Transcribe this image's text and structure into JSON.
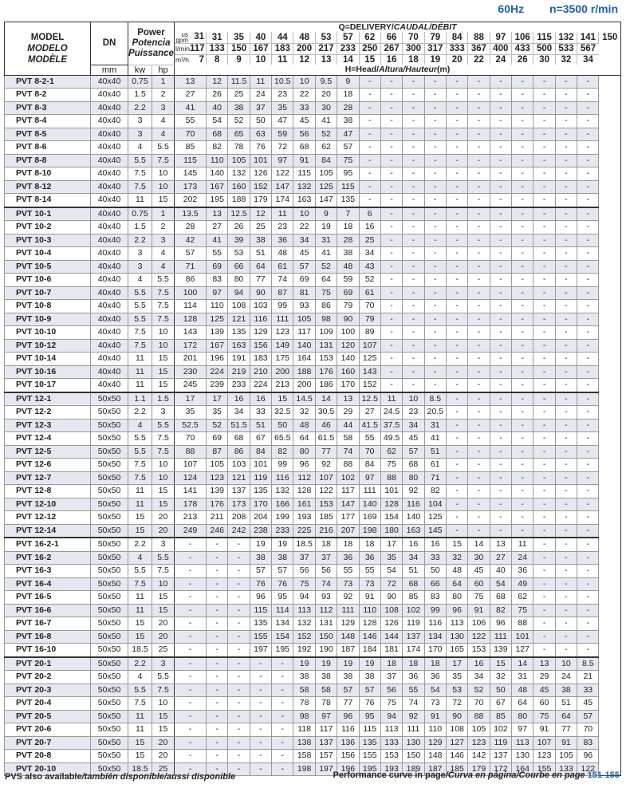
{
  "header": {
    "freq": "60Hz",
    "speed": "n=3500 r/min"
  },
  "columns": {
    "model": [
      "MODEL",
      "MODELO",
      "MODÈLE"
    ],
    "dn": "DN",
    "dn_unit": "mm",
    "power": [
      "Power",
      "Potencia",
      "Puissance"
    ],
    "kw": "kw",
    "hp": "hp",
    "delivery_label": "Q=DELIVERY/",
    "delivery_italic": "CAUDAL/DÉBIT",
    "gpm_unit": "us gpm",
    "lmin_unit": "l/min",
    "m3h_unit": "m³/h",
    "gpm": [
      "31",
      "35",
      "40",
      "44",
      "48",
      "53",
      "57",
      "62",
      "66",
      "70",
      "79",
      "84",
      "88",
      "97",
      "106",
      "115",
      "132",
      "141",
      "150"
    ],
    "gpm_first": "31",
    "lmin": [
      "117",
      "133",
      "150",
      "167",
      "183",
      "200",
      "217",
      "233",
      "250",
      "267",
      "300",
      "317",
      "333",
      "367",
      "400",
      "433",
      "500",
      "533",
      "567"
    ],
    "m3h": [
      "7",
      "8",
      "9",
      "10",
      "11",
      "12",
      "13",
      "14",
      "15",
      "16",
      "18",
      "19",
      "20",
      "22",
      "24",
      "26",
      "30",
      "32",
      "34"
    ],
    "head_label": "H=Head/",
    "head_italic": "Altura/Hauteur",
    "head_unit": "(m)"
  },
  "rows": [
    [
      "PVT 8-2-1",
      "40x40",
      "0.75",
      "1",
      "13",
      "12",
      "11.5",
      "11",
      "10.5",
      "10",
      "9.5",
      "9",
      "-",
      "-",
      "-",
      "-",
      "-",
      "-",
      "-",
      "-",
      "-",
      "-",
      "-"
    ],
    [
      "PVT 8-2",
      "40x40",
      "1.5",
      "2",
      "27",
      "26",
      "25",
      "24",
      "23",
      "22",
      "20",
      "18",
      "-",
      "-",
      "-",
      "-",
      "-",
      "-",
      "-",
      "-",
      "-",
      "-",
      "-"
    ],
    [
      "PVT 8-3",
      "40x40",
      "2.2",
      "3",
      "41",
      "40",
      "38",
      "37",
      "35",
      "33",
      "30",
      "28",
      "-",
      "-",
      "-",
      "-",
      "-",
      "-",
      "-",
      "-",
      "-",
      "-",
      "-"
    ],
    [
      "PVT 8-4",
      "40x40",
      "3",
      "4",
      "55",
      "54",
      "52",
      "50",
      "47",
      "45",
      "41",
      "38",
      "-",
      "-",
      "-",
      "-",
      "-",
      "-",
      "-",
      "-",
      "-",
      "-",
      "-"
    ],
    [
      "PVT 8-5",
      "40x40",
      "3",
      "4",
      "70",
      "68",
      "65",
      "63",
      "59",
      "56",
      "52",
      "47",
      "-",
      "-",
      "-",
      "-",
      "-",
      "-",
      "-",
      "-",
      "-",
      "-",
      "-"
    ],
    [
      "PVT 8-6",
      "40x40",
      "4",
      "5.5",
      "85",
      "82",
      "78",
      "76",
      "72",
      "68",
      "62",
      "57",
      "-",
      "-",
      "-",
      "-",
      "-",
      "-",
      "-",
      "-",
      "-",
      "-",
      "-"
    ],
    [
      "PVT 8-8",
      "40x40",
      "5.5",
      "7.5",
      "115",
      "110",
      "105",
      "101",
      "97",
      "91",
      "84",
      "75",
      "-",
      "-",
      "-",
      "-",
      "-",
      "-",
      "-",
      "-",
      "-",
      "-",
      "-"
    ],
    [
      "PVT 8-10",
      "40x40",
      "7.5",
      "10",
      "145",
      "140",
      "132",
      "126",
      "122",
      "115",
      "105",
      "95",
      "-",
      "-",
      "-",
      "-",
      "-",
      "-",
      "-",
      "-",
      "-",
      "-",
      "-"
    ],
    [
      "PVT 8-12",
      "40x40",
      "7.5",
      "10",
      "173",
      "167",
      "160",
      "152",
      "147",
      "132",
      "125",
      "115",
      "-",
      "-",
      "-",
      "-",
      "-",
      "-",
      "-",
      "-",
      "-",
      "-",
      "-"
    ],
    [
      "PVT 8-14",
      "40x40",
      "11",
      "15",
      "202",
      "195",
      "188",
      "179",
      "174",
      "163",
      "147",
      "135",
      "-",
      "-",
      "-",
      "-",
      "-",
      "-",
      "-",
      "-",
      "-",
      "-",
      "-"
    ],
    [
      "PVT 10-1",
      "40x40",
      "0.75",
      "1",
      "13.5",
      "13",
      "12.5",
      "12",
      "11",
      "10",
      "9",
      "7",
      "6",
      "-",
      "-",
      "-",
      "-",
      "-",
      "-",
      "-",
      "-",
      "-",
      "-"
    ],
    [
      "PVT 10-2",
      "40x40",
      "1.5",
      "2",
      "28",
      "27",
      "26",
      "25",
      "23",
      "22",
      "19",
      "18",
      "16",
      "-",
      "-",
      "-",
      "-",
      "-",
      "-",
      "-",
      "-",
      "-",
      "-"
    ],
    [
      "PVT 10-3",
      "40x40",
      "2.2",
      "3",
      "42",
      "41",
      "39",
      "38",
      "36",
      "34",
      "31",
      "28",
      "25",
      "-",
      "-",
      "-",
      "-",
      "-",
      "-",
      "-",
      "-",
      "-",
      "-"
    ],
    [
      "PVT 10-4",
      "40x40",
      "3",
      "4",
      "57",
      "55",
      "53",
      "51",
      "48",
      "45",
      "41",
      "38",
      "34",
      "-",
      "-",
      "-",
      "-",
      "-",
      "-",
      "-",
      "-",
      "-",
      "-"
    ],
    [
      "PVT 10-5",
      "40x40",
      "3",
      "4",
      "71",
      "69",
      "66",
      "64",
      "61",
      "57",
      "52",
      "48",
      "43",
      "-",
      "-",
      "-",
      "-",
      "-",
      "-",
      "-",
      "-",
      "-",
      "-"
    ],
    [
      "PVT 10-6",
      "40x40",
      "4",
      "5.5",
      "86",
      "83",
      "80",
      "77",
      "74",
      "69",
      "64",
      "59",
      "52",
      "-",
      "-",
      "-",
      "-",
      "-",
      "-",
      "-",
      "-",
      "-",
      "-"
    ],
    [
      "PVT 10-7",
      "40x40",
      "5.5",
      "7.5",
      "100",
      "97",
      "94",
      "90",
      "87",
      "81",
      "75",
      "69",
      "61",
      "-",
      "-",
      "-",
      "-",
      "-",
      "-",
      "-",
      "-",
      "-",
      "-"
    ],
    [
      "PVT 10-8",
      "40x40",
      "5.5",
      "7.5",
      "114",
      "110",
      "108",
      "103",
      "99",
      "93",
      "86",
      "79",
      "70",
      "-",
      "-",
      "-",
      "-",
      "-",
      "-",
      "-",
      "-",
      "-",
      "-"
    ],
    [
      "PVT 10-9",
      "40x40",
      "5.5",
      "7.5",
      "128",
      "125",
      "121",
      "116",
      "111",
      "105",
      "98",
      "90",
      "79",
      "-",
      "-",
      "-",
      "-",
      "-",
      "-",
      "-",
      "-",
      "-",
      "-"
    ],
    [
      "PVT 10-10",
      "40x40",
      "7.5",
      "10",
      "143",
      "139",
      "135",
      "129",
      "123",
      "117",
      "109",
      "100",
      "89",
      "-",
      "-",
      "-",
      "-",
      "-",
      "-",
      "-",
      "-",
      "-",
      "-"
    ],
    [
      "PVT 10-12",
      "40x40",
      "7.5",
      "10",
      "172",
      "167",
      "163",
      "156",
      "149",
      "140",
      "131",
      "120",
      "107",
      "-",
      "-",
      "-",
      "-",
      "-",
      "-",
      "-",
      "-",
      "-",
      "-"
    ],
    [
      "PVT 10-14",
      "40x40",
      "11",
      "15",
      "201",
      "196",
      "191",
      "183",
      "175",
      "164",
      "153",
      "140",
      "125",
      "-",
      "-",
      "-",
      "-",
      "-",
      "-",
      "-",
      "-",
      "-",
      "-"
    ],
    [
      "PVT 10-16",
      "40x40",
      "11",
      "15",
      "230",
      "224",
      "219",
      "210",
      "200",
      "188",
      "176",
      "160",
      "143",
      "-",
      "-",
      "-",
      "-",
      "-",
      "-",
      "-",
      "-",
      "-",
      "-"
    ],
    [
      "PVT 10-17",
      "40x40",
      "11",
      "15",
      "245",
      "239",
      "233",
      "224",
      "213",
      "200",
      "186",
      "170",
      "152",
      "-",
      "-",
      "-",
      "-",
      "-",
      "-",
      "-",
      "-",
      "-",
      "-"
    ],
    [
      "PVT 12-1",
      "50x50",
      "1.1",
      "1.5",
      "17",
      "17",
      "16",
      "16",
      "15",
      "14.5",
      "14",
      "13",
      "12.5",
      "11",
      "10",
      "8.5",
      "-",
      "-",
      "-",
      "-",
      "-",
      "-",
      "-"
    ],
    [
      "PVT 12-2",
      "50x50",
      "2.2",
      "3",
      "35",
      "35",
      "34",
      "33",
      "32.5",
      "32",
      "30.5",
      "29",
      "27",
      "24.5",
      "23",
      "20.5",
      "-",
      "-",
      "-",
      "-",
      "-",
      "-",
      "-"
    ],
    [
      "PVT 12-3",
      "50x50",
      "4",
      "5.5",
      "52.5",
      "52",
      "51.5",
      "51",
      "50",
      "48",
      "46",
      "44",
      "41.5",
      "37.5",
      "34",
      "31",
      "-",
      "-",
      "-",
      "-",
      "-",
      "-",
      "-"
    ],
    [
      "PVT 12-4",
      "50x50",
      "5.5",
      "7.5",
      "70",
      "69",
      "68",
      "67",
      "65.5",
      "64",
      "61.5",
      "58",
      "55",
      "49.5",
      "45",
      "41",
      "-",
      "-",
      "-",
      "-",
      "-",
      "-",
      "-"
    ],
    [
      "PVT 12-5",
      "50x50",
      "5.5",
      "7.5",
      "88",
      "87",
      "86",
      "84",
      "82",
      "80",
      "77",
      "74",
      "70",
      "62",
      "57",
      "51",
      "-",
      "-",
      "-",
      "-",
      "-",
      "-",
      "-"
    ],
    [
      "PVT 12-6",
      "50x50",
      "7.5",
      "10",
      "107",
      "105",
      "103",
      "101",
      "99",
      "96",
      "92",
      "88",
      "84",
      "75",
      "68",
      "61",
      "-",
      "-",
      "-",
      "-",
      "-",
      "-",
      "-"
    ],
    [
      "PVT 12-7",
      "50x50",
      "7.5",
      "10",
      "124",
      "123",
      "121",
      "119",
      "116",
      "112",
      "107",
      "102",
      "97",
      "88",
      "80",
      "71",
      "-",
      "-",
      "-",
      "-",
      "-",
      "-",
      "-"
    ],
    [
      "PVT 12-8",
      "50x50",
      "11",
      "15",
      "141",
      "139",
      "137",
      "135",
      "132",
      "128",
      "122",
      "117",
      "111",
      "101",
      "92",
      "82",
      "-",
      "-",
      "-",
      "-",
      "-",
      "-",
      "-"
    ],
    [
      "PVT 12-10",
      "50x50",
      "11",
      "15",
      "178",
      "176",
      "173",
      "170",
      "166",
      "161",
      "153",
      "147",
      "140",
      "128",
      "116",
      "104",
      "-",
      "-",
      "-",
      "-",
      "-",
      "-",
      "-"
    ],
    [
      "PVT 12-12",
      "50x50",
      "15",
      "20",
      "213",
      "211",
      "208",
      "204",
      "199",
      "193",
      "185",
      "177",
      "169",
      "154",
      "140",
      "125",
      "-",
      "-",
      "-",
      "-",
      "-",
      "-",
      "-"
    ],
    [
      "PVT 12-14",
      "50x50",
      "15",
      "20",
      "249",
      "246",
      "242",
      "238",
      "233",
      "225",
      "216",
      "207",
      "198",
      "180",
      "163",
      "145",
      "-",
      "-",
      "-",
      "-",
      "-",
      "-",
      "-"
    ],
    [
      "PVT 16-2-1",
      "50x50",
      "2.2",
      "3",
      "-",
      "-",
      "-",
      "19",
      "19",
      "18.5",
      "18",
      "18",
      "18",
      "17",
      "16",
      "16",
      "15",
      "14",
      "13",
      "11",
      "-",
      "-",
      "-"
    ],
    [
      "PVT 16-2",
      "50x50",
      "4",
      "5.5",
      "-",
      "-",
      "-",
      "38",
      "38",
      "37",
      "37",
      "36",
      "36",
      "35",
      "34",
      "33",
      "32",
      "30",
      "27",
      "24",
      "-",
      "-",
      "-"
    ],
    [
      "PVT 16-3",
      "50x50",
      "5.5",
      "7.5",
      "-",
      "-",
      "-",
      "57",
      "57",
      "56",
      "56",
      "55",
      "55",
      "54",
      "51",
      "50",
      "48",
      "45",
      "40",
      "36",
      "-",
      "-",
      "-"
    ],
    [
      "PVT 16-4",
      "50x50",
      "7.5",
      "10",
      "-",
      "-",
      "-",
      "76",
      "76",
      "75",
      "74",
      "73",
      "73",
      "72",
      "68",
      "66",
      "64",
      "60",
      "54",
      "49",
      "-",
      "-",
      "-"
    ],
    [
      "PVT 16-5",
      "50x50",
      "11",
      "15",
      "-",
      "-",
      "-",
      "96",
      "95",
      "94",
      "93",
      "92",
      "91",
      "90",
      "85",
      "83",
      "80",
      "75",
      "68",
      "62",
      "-",
      "-",
      "-"
    ],
    [
      "PVT 16-6",
      "50x50",
      "11",
      "15",
      "-",
      "-",
      "-",
      "115",
      "114",
      "113",
      "112",
      "111",
      "110",
      "108",
      "102",
      "99",
      "96",
      "91",
      "82",
      "75",
      "-",
      "-",
      "-"
    ],
    [
      "PVT 16-7",
      "50x50",
      "15",
      "20",
      "-",
      "-",
      "-",
      "135",
      "134",
      "132",
      "131",
      "129",
      "128",
      "126",
      "119",
      "116",
      "113",
      "106",
      "96",
      "88",
      "-",
      "-",
      "-"
    ],
    [
      "PVT 16-8",
      "50x50",
      "15",
      "20",
      "-",
      "-",
      "-",
      "155",
      "154",
      "152",
      "150",
      "148",
      "146",
      "144",
      "137",
      "134",
      "130",
      "122",
      "111",
      "101",
      "-",
      "-",
      "-"
    ],
    [
      "PVT 16-10",
      "50x50",
      "18.5",
      "25",
      "-",
      "-",
      "-",
      "197",
      "195",
      "192",
      "190",
      "187",
      "184",
      "181",
      "174",
      "170",
      "165",
      "153",
      "139",
      "127",
      "-",
      "-",
      "-"
    ],
    [
      "PVT 20-1",
      "50x50",
      "2.2",
      "3",
      "-",
      "-",
      "-",
      "-",
      "-",
      "19",
      "19",
      "19",
      "19",
      "18",
      "18",
      "18",
      "17",
      "16",
      "15",
      "14",
      "13",
      "10",
      "8.5"
    ],
    [
      "PVT 20-2",
      "50x50",
      "4",
      "5.5",
      "-",
      "-",
      "-",
      "-",
      "-",
      "38",
      "38",
      "38",
      "38",
      "37",
      "36",
      "36",
      "35",
      "34",
      "32",
      "31",
      "29",
      "24",
      "21"
    ],
    [
      "PVT 20-3",
      "50x50",
      "5.5",
      "7.5",
      "-",
      "-",
      "-",
      "-",
      "-",
      "58",
      "58",
      "57",
      "57",
      "56",
      "55",
      "54",
      "53",
      "52",
      "50",
      "48",
      "45",
      "38",
      "33"
    ],
    [
      "PVT 20-4",
      "50x50",
      "7.5",
      "10",
      "-",
      "-",
      "-",
      "-",
      "-",
      "78",
      "78",
      "77",
      "76",
      "75",
      "74",
      "73",
      "72",
      "70",
      "67",
      "64",
      "60",
      "51",
      "45"
    ],
    [
      "PVT 20-5",
      "50x50",
      "11",
      "15",
      "-",
      "-",
      "-",
      "-",
      "-",
      "98",
      "97",
      "96",
      "95",
      "94",
      "92",
      "91",
      "90",
      "88",
      "85",
      "80",
      "75",
      "64",
      "57"
    ],
    [
      "PVT 20-6",
      "50x50",
      "11",
      "15",
      "-",
      "-",
      "-",
      "-",
      "-",
      "118",
      "117",
      "116",
      "115",
      "113",
      "111",
      "110",
      "108",
      "105",
      "102",
      "97",
      "91",
      "77",
      "70"
    ],
    [
      "PVT 20-7",
      "50x50",
      "15",
      "20",
      "-",
      "-",
      "-",
      "-",
      "-",
      "138",
      "137",
      "136",
      "135",
      "133",
      "130",
      "129",
      "127",
      "123",
      "119",
      "113",
      "107",
      "91",
      "83"
    ],
    [
      "PVT 20-8",
      "50x50",
      "15",
      "20",
      "-",
      "-",
      "-",
      "-",
      "-",
      "158",
      "157",
      "156",
      "155",
      "153",
      "150",
      "148",
      "146",
      "142",
      "137",
      "130",
      "123",
      "105",
      "96"
    ],
    [
      "PVT 20-10",
      "50x50",
      "18.5",
      "25",
      "-",
      "-",
      "-",
      "-",
      "-",
      "198",
      "197",
      "196",
      "195",
      "193",
      "189",
      "187",
      "185",
      "179",
      "172",
      "164",
      "155",
      "133",
      "122"
    ]
  ],
  "footer": {
    "left": "PVS also available",
    "left_italic": "/también disponible/aussi disponible",
    "right": "Performance curve in page",
    "right_italic": "/Curva en página/Courbe en page",
    "pages": "151-155"
  }
}
